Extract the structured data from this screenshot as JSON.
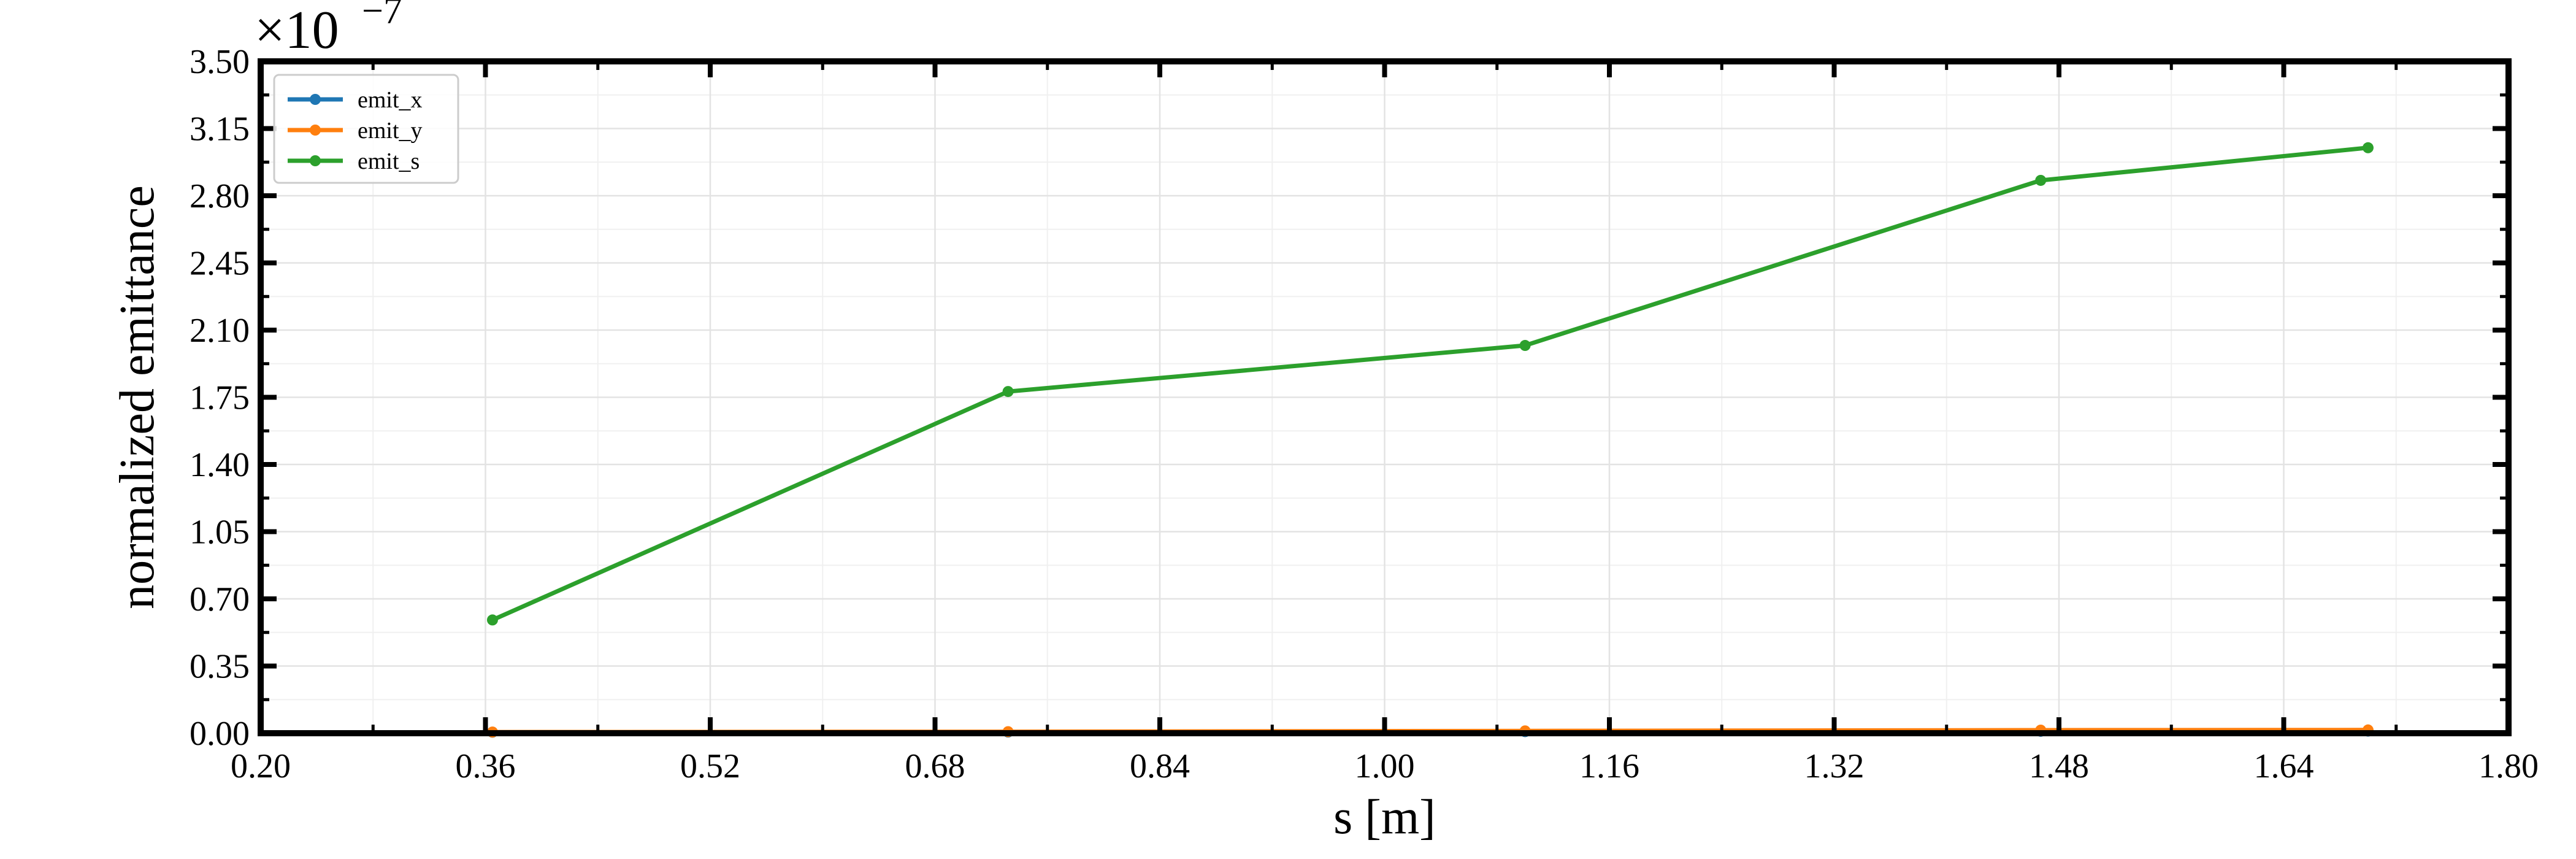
{
  "chart_data": {
    "type": "line",
    "xlabel": "s [m]",
    "ylabel": "normalized emittance",
    "y_scale_label": {
      "base": "×10",
      "exponent": "−7"
    },
    "xlim": [
      0.2,
      1.8
    ],
    "ylim": [
      0.0,
      3.5
    ],
    "x_ticks": [
      "0.20",
      "0.36",
      "0.52",
      "0.68",
      "0.84",
      "1.00",
      "1.16",
      "1.32",
      "1.48",
      "1.64",
      "1.80"
    ],
    "x_tick_values": [
      0.2,
      0.36,
      0.52,
      0.68,
      0.84,
      1.0,
      1.16,
      1.32,
      1.48,
      1.64,
      1.8
    ],
    "y_ticks": [
      "0.00",
      "0.35",
      "0.70",
      "1.05",
      "1.40",
      "1.75",
      "2.10",
      "2.45",
      "2.80",
      "3.15",
      "3.50"
    ],
    "y_tick_values": [
      0.0,
      0.35,
      0.7,
      1.05,
      1.4,
      1.75,
      2.1,
      2.45,
      2.8,
      3.15,
      3.5
    ],
    "grid": true,
    "legend_position": "top-left",
    "series": [
      {
        "name": "emit_x",
        "color": "#1f77b4",
        "x": [
          0.365,
          0.732,
          1.1,
          1.467,
          1.7
        ],
        "y": [
          0.005,
          0.006,
          0.008,
          0.01,
          0.011
        ]
      },
      {
        "name": "emit_y",
        "color": "#ff7f0e",
        "x": [
          0.365,
          0.732,
          1.1,
          1.467,
          1.7
        ],
        "y": [
          0.006,
          0.008,
          0.012,
          0.016,
          0.017
        ]
      },
      {
        "name": "emit_s",
        "color": "#2ca02c",
        "x": [
          0.365,
          0.732,
          1.1,
          1.467,
          1.7
        ],
        "y": [
          0.59,
          1.78,
          2.02,
          2.88,
          3.05
        ]
      }
    ]
  }
}
